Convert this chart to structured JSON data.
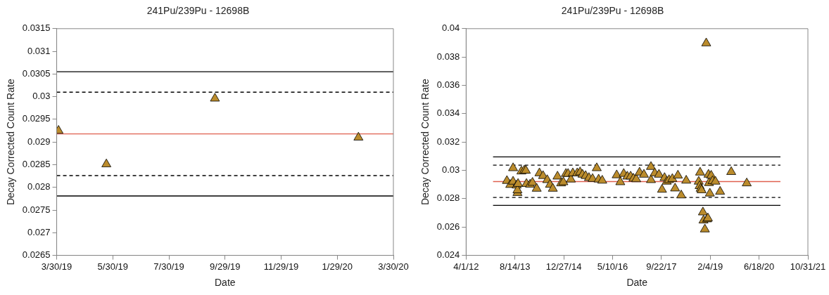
{
  "chart_data": [
    {
      "type": "scatter",
      "title": "241Pu/239Pu - 12698B",
      "xlabel": "Date",
      "ylabel": "Decay Corrected Count Rate",
      "marker": "triangle",
      "xlim": [
        "2019-03-30",
        "2020-03-30"
      ],
      "xticks": [
        {
          "value": "2019-03-30",
          "label": "3/30/19"
        },
        {
          "value": "2019-05-30",
          "label": "5/30/19"
        },
        {
          "value": "2019-07-30",
          "label": "7/30/19"
        },
        {
          "value": "2019-09-29",
          "label": "9/29/19"
        },
        {
          "value": "2019-11-29",
          "label": "11/29/19"
        },
        {
          "value": "2020-01-29",
          "label": "1/29/20"
        },
        {
          "value": "2020-03-30",
          "label": "3/30/20"
        }
      ],
      "ylim": [
        0.0265,
        0.0315
      ],
      "yticks": [
        0.0265,
        0.027,
        0.0275,
        0.028,
        0.0285,
        0.029,
        0.0295,
        0.03,
        0.0305,
        0.031,
        0.0315
      ],
      "series": [
        {
          "color": "#bb8c2c",
          "x": [
            "2019-04-01",
            "2019-05-23",
            "2019-09-18",
            "2020-02-21"
          ],
          "values": [
            0.02925,
            0.02851,
            0.02996,
            0.0291
          ]
        }
      ],
      "ref_lines": [
        {
          "axis": "y",
          "value": 0.03055,
          "color": "#000000",
          "line_style": "solid"
        },
        {
          "axis": "y",
          "value": 0.0301,
          "color": "#000000",
          "line_style": "dashed"
        },
        {
          "axis": "y",
          "value": 0.02918,
          "color": "#e0604f",
          "line_style": "solid"
        },
        {
          "axis": "y",
          "value": 0.02826,
          "color": "#000000",
          "line_style": "dashed"
        },
        {
          "axis": "y",
          "value": 0.02781,
          "color": "#000000",
          "line_style": "solid"
        }
      ]
    },
    {
      "type": "scatter",
      "title": "241Pu/239Pu - 12698B",
      "xlabel": "Date",
      "ylabel": "Decay Corrected Count Rate",
      "xlim": [
        "2012-04-01",
        "2021-10-31"
      ],
      "xticks": [
        {
          "value": "2012-04-01",
          "label": "4/1/12"
        },
        {
          "value": "2013-08-14",
          "label": "8/14/13"
        },
        {
          "value": "2014-12-27",
          "label": "12/27/14"
        },
        {
          "value": "2016-05-10",
          "label": "5/10/16"
        },
        {
          "value": "2017-09-22",
          "label": "9/22/17"
        },
        {
          "value": "2019-02-04",
          "label": "2/4/19"
        },
        {
          "value": "2020-06-18",
          "label": "6/18/20"
        },
        {
          "value": "2021-10-31",
          "label": "10/31/21"
        }
      ],
      "ylim": [
        0.024,
        0.04
      ],
      "yticks": [
        0.024,
        0.026,
        0.028,
        0.03,
        0.032,
        0.034,
        0.036,
        0.038,
        0.04
      ],
      "series": [
        {
          "type": "line",
          "color": "#000000",
          "line_style": "solid",
          "x": [
            "2013-01-02",
            "2021-01-23"
          ],
          "values": [
            0.03095,
            0.03095
          ]
        },
        {
          "type": "line",
          "color": "#000000",
          "line_style": "dashed",
          "x": [
            "2013-01-02",
            "2021-01-23"
          ],
          "values": [
            0.03037,
            0.03037
          ]
        },
        {
          "type": "line",
          "color": "#e0604f",
          "line_style": "solid",
          "x": [
            "2013-01-02",
            "2021-01-23"
          ],
          "values": [
            0.02921,
            0.02921
          ]
        },
        {
          "type": "line",
          "color": "#000000",
          "line_style": "dashed",
          "x": [
            "2013-01-02",
            "2021-01-23"
          ],
          "values": [
            0.02809,
            0.02809
          ]
        },
        {
          "type": "line",
          "color": "#000000",
          "line_style": "solid",
          "x": [
            "2013-01-02",
            "2021-01-23"
          ],
          "values": [
            0.02753,
            0.02753
          ]
        },
        {
          "marker": "triangle",
          "color": "#bb8c2c",
          "x": [
            "2013-05-24",
            "2013-06-27",
            "2013-07-26",
            "2013-07-26",
            "2013-09-01",
            "2013-09-09",
            "2013-09-09",
            "2013-09-15",
            "2013-10-19",
            "2013-11-17",
            "2013-12-04",
            "2013-12-10",
            "2014-01-16",
            "2014-02-10",
            "2014-03-25",
            "2014-04-22",
            "2014-05-29",
            "2014-07-11",
            "2014-08-08",
            "2014-09-06",
            "2014-10-24",
            "2014-11-30",
            "2014-12-23",
            "2015-01-18",
            "2015-02-09",
            "2015-03-10",
            "2015-03-30",
            "2015-05-14",
            "2015-06-12",
            "2015-07-07",
            "2015-08-08",
            "2015-09-11",
            "2015-10-18",
            "2015-11-30",
            "2015-12-19",
            "2016-01-25",
            "2016-06-21",
            "2016-07-28",
            "2016-09-01",
            "2016-10-08",
            "2016-11-11",
            "2016-12-09",
            "2017-01-07",
            "2017-02-10",
            "2017-03-27",
            "2017-06-07",
            "2017-06-07",
            "2017-07-16",
            "2017-08-28",
            "2017-09-28",
            "2017-10-24",
            "2017-11-16",
            "2017-12-09",
            "2018-01-12",
            "2018-02-09",
            "2018-03-10",
            "2018-04-13",
            "2018-06-03",
            "2018-10-23",
            "2018-10-09",
            "2018-10-18",
            "2018-10-29",
            "2018-11-07",
            "2018-11-21",
            "2018-11-27",
            "2018-12-11",
            "2018-12-25",
            "2019-01-03",
            "2019-01-11",
            "2019-01-17",
            "2019-01-22",
            "2019-01-31",
            "2019-02-14",
            "2019-02-28",
            "2019-03-29",
            "2019-05-16",
            "2019-09-07",
            "2020-02-13"
          ],
          "values": [
            0.02926,
            0.02898,
            0.03016,
            0.02921,
            0.02894,
            0.02841,
            0.0286,
            0.02905,
            0.02993,
            0.02999,
            0.02998,
            0.02905,
            0.029,
            0.02913,
            0.02871,
            0.0298,
            0.02961,
            0.02932,
            0.02899,
            0.02871,
            0.02957,
            0.02909,
            0.02917,
            0.02976,
            0.02976,
            0.02936,
            0.0298,
            0.0298,
            0.02987,
            0.0297,
            0.02961,
            0.02947,
            0.0294,
            0.03016,
            0.02936,
            0.02928,
            0.02966,
            0.02917,
            0.02976,
            0.02957,
            0.02957,
            0.02942,
            0.02938,
            0.02985,
            0.0297,
            0.03025,
            0.02932,
            0.0298,
            0.0297,
            0.02864,
            0.02947,
            0.02921,
            0.02932,
            0.0294,
            0.02873,
            0.02964,
            0.02824,
            0.02928,
            0.02985,
            0.02921,
            0.0289,
            0.02871,
            0.0286,
            0.02704,
            0.02647,
            0.02584,
            0.03897,
            0.02655,
            0.02662,
            0.0297,
            0.02911,
            0.02837,
            0.02963,
            0.02925,
            0.02921,
            0.0285,
            0.02989,
            0.02909
          ]
        }
      ]
    }
  ]
}
